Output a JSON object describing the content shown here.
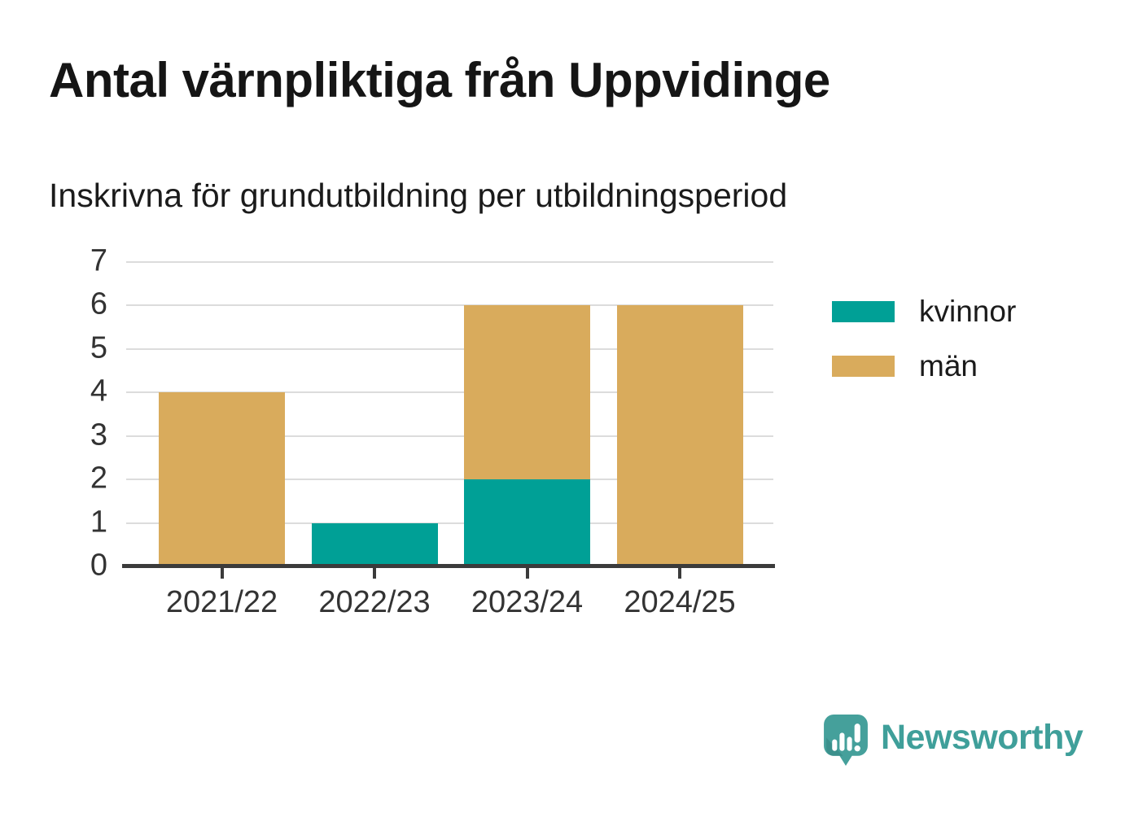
{
  "title": "Antal värnpliktiga från Uppvidinge",
  "subtitle": "Inskrivna för grundutbildning per utbildningsperiod",
  "chart_data": {
    "type": "bar",
    "stacked": true,
    "categories": [
      "2021/22",
      "2022/23",
      "2023/24",
      "2024/25"
    ],
    "series": [
      {
        "name": "kvinnor",
        "color": "#00a096",
        "values": [
          0,
          1,
          2,
          0
        ]
      },
      {
        "name": "män",
        "color": "#d9ab5c",
        "values": [
          4,
          0,
          4,
          6
        ]
      }
    ],
    "title": "Antal värnpliktiga från Uppvidinge",
    "subtitle": "Inskrivna för grundutbildning per utbildningsperiod",
    "xlabel": "",
    "ylabel": "",
    "ylim": [
      0,
      7
    ],
    "yticks": [
      0,
      1,
      2,
      3,
      4,
      5,
      6,
      7
    ],
    "grid": true,
    "legend_position": "right",
    "style_colors": {
      "gridline": "#dcdcdc",
      "axis": "#3b3b3b",
      "tick_text": "#333333"
    }
  },
  "branding": {
    "name": "Newsworthy",
    "logo_icon": "newsworthy-speech-bubble-bar-chart-icon",
    "color": "#3f9f9a"
  }
}
